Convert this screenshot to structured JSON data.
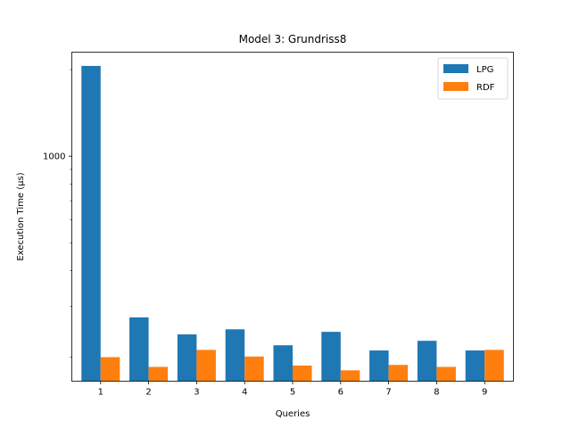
{
  "chart_data": {
    "type": "bar",
    "title": "Model 3: Grundriss8",
    "xlabel": "Queries",
    "ylabel": "Execution Time (µs)",
    "y_scale": "log",
    "ylim": [
      165,
      2300
    ],
    "y_ticks": [
      1000
    ],
    "y_tick_labels": [
      "1000"
    ],
    "grid": false,
    "legend_position": "top-right",
    "categories": [
      "1",
      "2",
      "3",
      "4",
      "5",
      "6",
      "7",
      "8",
      "9"
    ],
    "series": [
      {
        "name": "LPG",
        "color": "#1f77b4",
        "values": [
          2060,
          275,
          240,
          250,
          220,
          245,
          211,
          228,
          211
        ]
      },
      {
        "name": "RDF",
        "color": "#ff7f0e",
        "values": [
          200,
          185,
          212,
          201,
          187,
          180,
          188,
          185,
          212
        ]
      }
    ]
  }
}
